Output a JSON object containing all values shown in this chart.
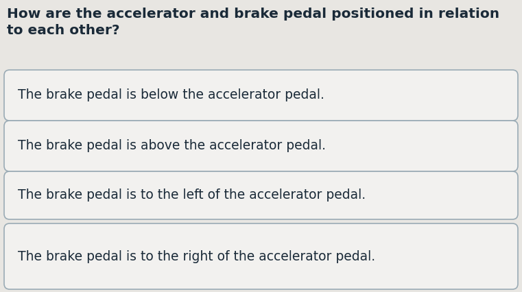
{
  "question": "How are the accelerator and brake pedal positioned in relation\nto each other?",
  "options": [
    "The brake pedal is below the accelerator pedal.",
    "The brake pedal is above the accelerator pedal.",
    "The brake pedal is to the left of the accelerator pedal.",
    "The brake pedal is to the right of the accelerator pedal."
  ],
  "background_color": "#e8e6e2",
  "box_facecolor": "#f2f1ef",
  "box_edgecolor": "#9aabb5",
  "question_color": "#1a2a38",
  "option_color": "#1a2a38",
  "question_fontsize": 14.5,
  "option_fontsize": 13.5,
  "fig_width": 7.61,
  "fig_height": 4.26,
  "dpi": 100
}
